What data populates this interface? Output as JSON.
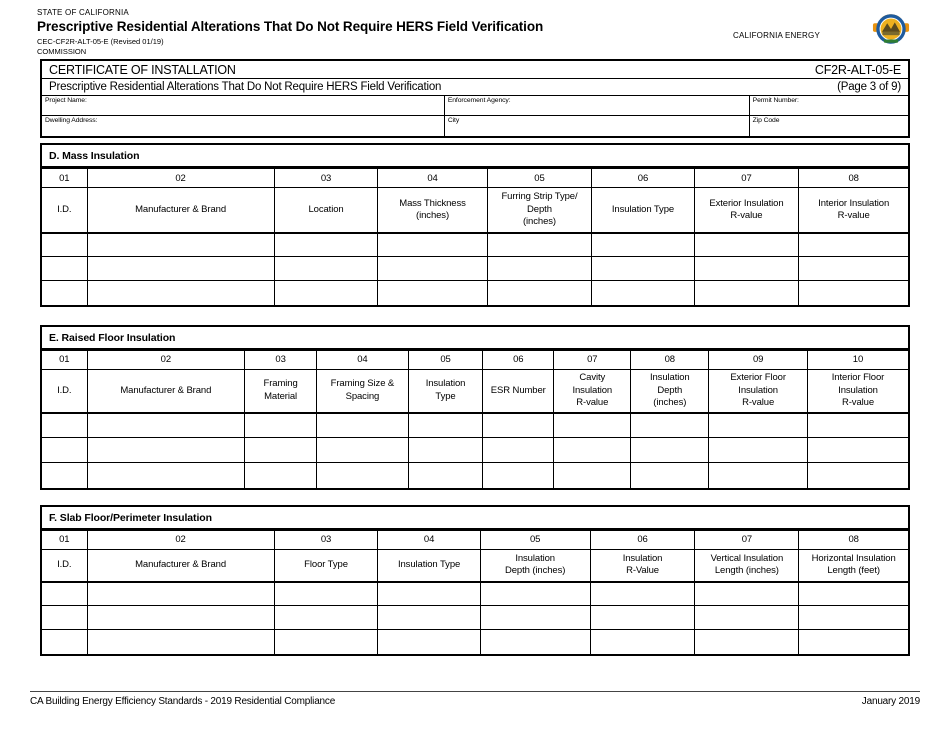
{
  "masthead": {
    "state_line": "STATE OF CALIFORNIA",
    "title": "Prescriptive Residential Alterations That Do Not Require HERS Field Verification",
    "doc_number": "CEC-CF2R-ALT-05-E (Revised 01/19)",
    "commission_wrap": "COMMISSION",
    "agency_text": "CALIFORNIA ENERGY",
    "logo_name": "california-energy-commission-seal",
    "logo_colors": {
      "ring": "#1f5b9e",
      "center": "#edb01f",
      "art": "#5a4a1e",
      "tabs": "#e8920f",
      "banner": "#2e7d32"
    }
  },
  "certificate": {
    "title": "CERTIFICATE OF INSTALLATION",
    "code": "CF2R-ALT-05-E",
    "subtitle": "Prescriptive Residential Alterations That Do Not Require HERS Field Verification",
    "page_info": "(Page 3 of 9)",
    "field_rows": [
      {
        "cells": [
          {
            "label": "Project Name:"
          },
          {
            "label": "Enforcement Agency:"
          },
          {
            "label": "Permit Number:"
          }
        ]
      },
      {
        "cells": [
          {
            "label": "Dwelling Address:"
          },
          {
            "label": "City"
          },
          {
            "label": "Zip Code"
          }
        ]
      }
    ]
  },
  "sections": [
    {
      "title": "D. Mass Insulation",
      "numbers": [
        "01",
        "02",
        "03",
        "04",
        "05",
        "06",
        "07",
        "08"
      ],
      "headers": [
        "I.D.",
        "Manufacturer & Brand",
        "Location",
        "Mass Thickness\n(inches)",
        "Furring Strip Type/\nDepth\n(inches)",
        "Insulation Type",
        "Exterior Insulation\nR-value",
        "Interior Insulation\nR-value"
      ],
      "blank_row_count": 3
    },
    {
      "title": "E. Raised Floor Insulation",
      "numbers": [
        "01",
        "02",
        "03",
        "04",
        "05",
        "06",
        "07",
        "08",
        "09",
        "10"
      ],
      "headers": [
        "I.D.",
        "Manufacturer & Brand",
        "Framing\nMaterial",
        "Framing Size &\nSpacing",
        "Insulation\nType",
        "ESR Number",
        "Cavity\nInsulation\nR-value",
        "Insulation\nDepth\n(inches)",
        "Exterior Floor\nInsulation\nR-value",
        "Interior Floor\nInsulation\nR-value"
      ],
      "blank_row_count": 3
    },
    {
      "title": "F. Slab Floor/Perimeter Insulation",
      "numbers": [
        "01",
        "02",
        "03",
        "04",
        "05",
        "06",
        "07",
        "08"
      ],
      "headers": [
        "I.D.",
        "Manufacturer & Brand",
        "Floor Type",
        "Insulation Type",
        "Insulation\nDepth (inches)",
        "Insulation\nR-Value",
        "Vertical Insulation\nLength (inches)",
        "Horizontal Insulation\nLength (feet)"
      ],
      "blank_row_count": 3
    }
  ],
  "footer": {
    "left": "CA Building Energy Efficiency Standards - 2019 Residential Compliance",
    "right": "January 2019"
  }
}
